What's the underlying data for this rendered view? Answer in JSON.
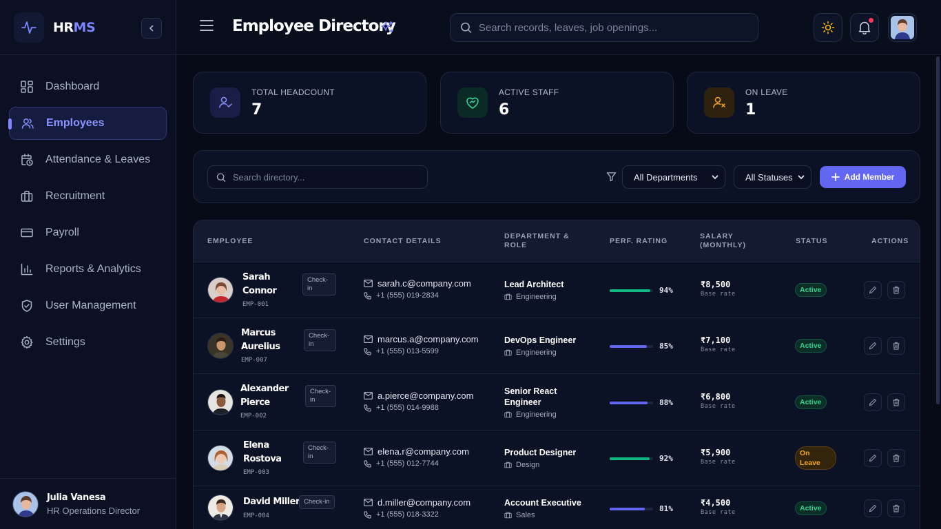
{
  "brand": {
    "part1": "HR",
    "part2": "MS"
  },
  "sidebar": {
    "items": [
      {
        "label": "Dashboard",
        "icon": "dashboard-icon"
      },
      {
        "label": "Employees",
        "icon": "users-icon"
      },
      {
        "label": "Attendance & Leaves",
        "icon": "calendar-clock-icon"
      },
      {
        "label": "Recruitment",
        "icon": "briefcase-icon"
      },
      {
        "label": "Payroll",
        "icon": "credit-card-icon"
      },
      {
        "label": "Reports & Analytics",
        "icon": "bar-chart-icon"
      },
      {
        "label": "User Management",
        "icon": "shield-icon"
      },
      {
        "label": "Settings",
        "icon": "gear-icon"
      }
    ],
    "active": "Employees"
  },
  "user": {
    "name": "Julia Vanesa",
    "role": "HR Operations Director"
  },
  "header": {
    "title": "Employee Directory",
    "search_placeholder": "Search records, leaves, job openings..."
  },
  "stats": [
    {
      "label": "TOTAL HEADCOUNT",
      "value": "7",
      "color": "#6366f1"
    },
    {
      "label": "ACTIVE STAFF",
      "value": "6",
      "color": "#10b981"
    },
    {
      "label": "ON LEAVE",
      "value": "1",
      "color": "#f59e0b"
    }
  ],
  "filters": {
    "search_placeholder": "Search directory...",
    "department": "All Departments",
    "status": "All Statuses",
    "add_label": "Add Member"
  },
  "table": {
    "headers": {
      "employee": "EMPLOYEE",
      "contact": "CONTACT DETAILS",
      "dept_line1": "DEPARTMENT &",
      "dept_line2": "ROLE",
      "perf": "PERF. RATING",
      "salary_line1": "SALARY",
      "salary_line2": "(MONTHLY)",
      "status": "STATUS",
      "actions": "ACTIONS"
    },
    "checkin_label": "Check-in",
    "checkin_line1": "Check-",
    "checkin_line2": "in",
    "base_rate": "Base rate",
    "rows": [
      {
        "first": "Sarah",
        "last": "Connor",
        "id": "EMP-001",
        "email": "sarah.c@company.com",
        "phone": "+1 (555) 019-2834",
        "role": "Lead Architect",
        "department": "Engineering",
        "rating": "94%",
        "rating_fraction": 0.94,
        "salary": "₹8,500",
        "status": "Active"
      },
      {
        "first": "Marcus",
        "last": "Aurelius",
        "id": "EMP-007",
        "email": "marcus.a@company.com",
        "phone": "+1 (555) 013-5599",
        "role": "DevOps Engineer",
        "department": "Engineering",
        "rating": "85%",
        "rating_fraction": 0.85,
        "salary": "₹7,100",
        "status": "Active"
      },
      {
        "first": "Alexander",
        "last": "Pierce",
        "id": "EMP-002",
        "email": "a.pierce@company.com",
        "phone": "+1 (555) 014-9988",
        "role_line1": "Senior React",
        "role_line2": "Engineer",
        "department": "Engineering",
        "rating": "88%",
        "rating_fraction": 0.88,
        "salary": "₹6,800",
        "status": "Active"
      },
      {
        "first": "Elena",
        "last": "Rostova",
        "id": "EMP-003",
        "email": "elena.r@company.com",
        "phone": "+1 (555) 012-7744",
        "role": "Product Designer",
        "department": "Design",
        "rating": "92%",
        "rating_fraction": 0.92,
        "salary": "₹5,900",
        "status_line1": "On",
        "status_line2": "Leave"
      },
      {
        "name": "David Miller",
        "id": "EMP-004",
        "email": "d.miller@company.com",
        "phone": "+1 (555) 018-3322",
        "role": "Account Executive",
        "department": "Sales",
        "rating": "81%",
        "rating_fraction": 0.81,
        "salary": "₹4,500",
        "status": "Active"
      }
    ]
  },
  "colors": {
    "accent": "#6366f1",
    "success": "#10b981",
    "warning": "#f59e0b",
    "bar_blue": "#6366f1",
    "bar_green": "#10b981"
  }
}
